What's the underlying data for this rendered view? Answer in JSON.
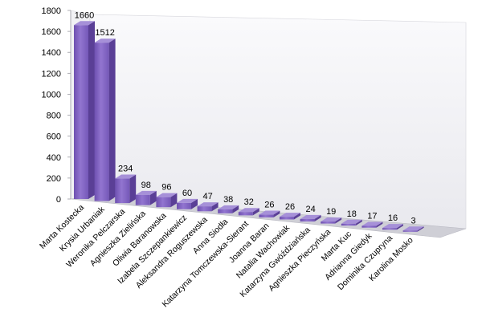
{
  "chart_data": {
    "type": "bar",
    "style": "3d-column",
    "categories": [
      "Marta Kostecka",
      "Krysia Urbaniak",
      "Weronika Pelczarska",
      "Agnieszka Zielińska",
      "Oliwia Baranowska",
      "Izabela Szczepankiewicz",
      "Aleksandra Roguszewska",
      "Anna Siodła",
      "Katarzyna Tomczewska-Sierant",
      "Joanna Baran",
      "Natalia Wachowiak",
      "Katarzyna Gwóździańska",
      "Agnieszka Pieczyńska",
      "Marta Kuc",
      "Adrianna Giedyk",
      "Dominika Czupryna",
      "Karolina Mosko"
    ],
    "values": [
      1660,
      1512,
      234,
      98,
      96,
      60,
      47,
      38,
      32,
      26,
      26,
      24,
      19,
      18,
      17,
      16,
      3
    ],
    "data_labels": [
      "1660",
      "1512",
      "234",
      "98",
      "96",
      "60",
      "47",
      "38",
      "32",
      "26",
      "26",
      "24",
      "19",
      "18",
      "17",
      "16",
      "3"
    ],
    "y_ticks": [
      "0",
      "200",
      "400",
      "600",
      "800",
      "1000",
      "1200",
      "1400",
      "1600",
      "1800"
    ],
    "ylim": [
      0,
      1800
    ],
    "title": "",
    "xlabel": "",
    "ylabel": "",
    "grid": false,
    "legend": "none",
    "colors": {
      "bar_front": "#8060C0",
      "bar_side": "#5A3F96",
      "bar_top": "#A690D8",
      "wall": "#F1F1F4",
      "floor": "#CFCFD6"
    }
  }
}
